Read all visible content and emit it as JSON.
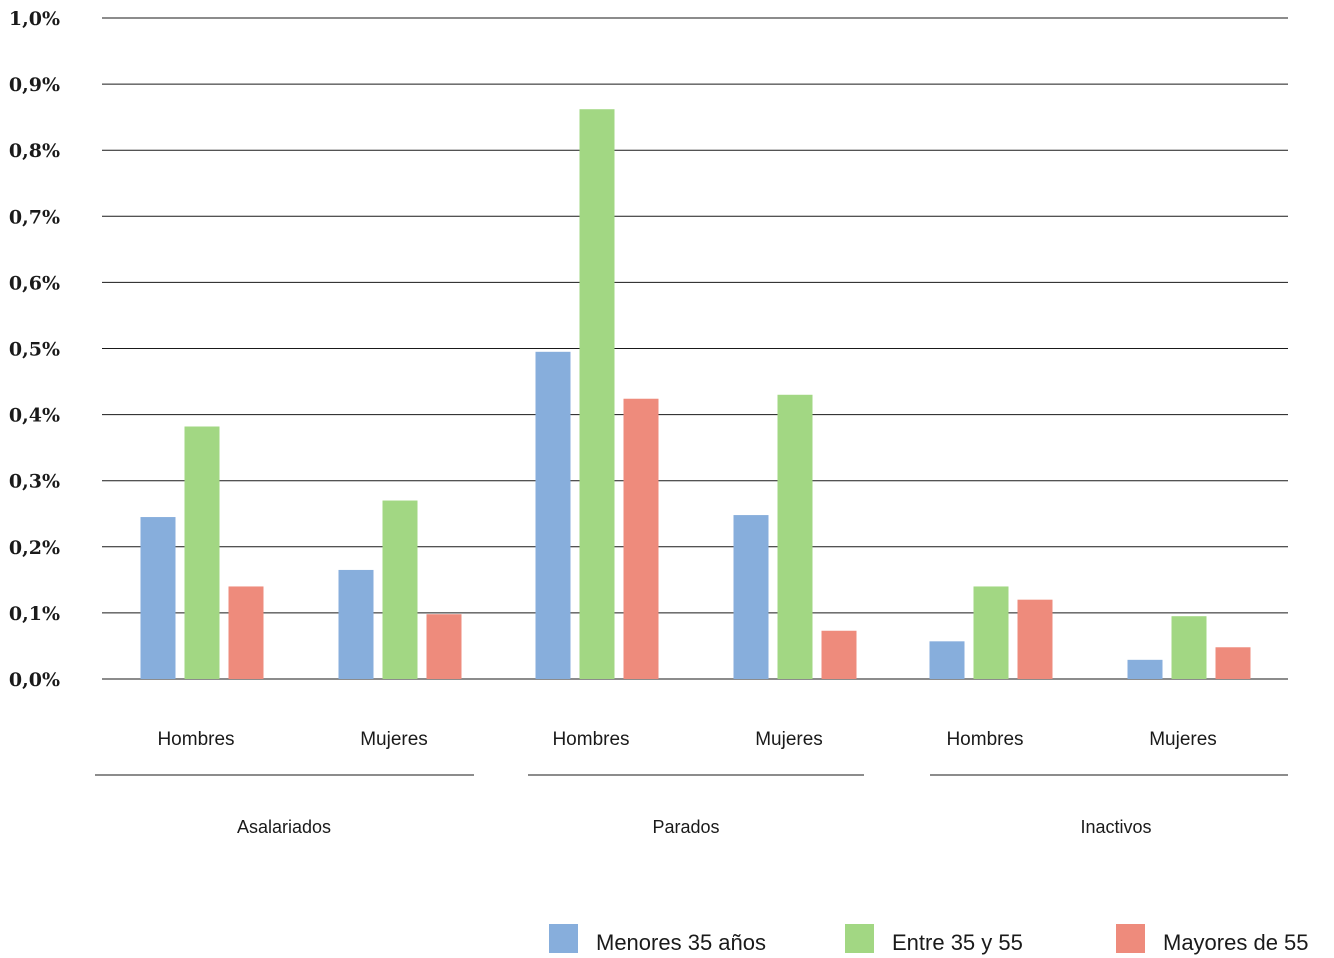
{
  "chart_data": {
    "type": "bar",
    "ylim": [
      0,
      1.0
    ],
    "yticks": [
      "0,0%",
      "0,1%",
      "0,2%",
      "0,3%",
      "0,4%",
      "0,5%",
      "0,6%",
      "0,7%",
      "0,8%",
      "0,9%",
      "1,0%"
    ],
    "grid": true,
    "legend_position": "bottom-right",
    "groups": [
      {
        "label": "Asalariados",
        "subcategories": [
          "Hombres",
          "Mujeres"
        ]
      },
      {
        "label": "Parados",
        "subcategories": [
          "Hombres",
          "Mujeres"
        ]
      },
      {
        "label": "Inactivos",
        "subcategories": [
          "Hombres",
          "Mujeres"
        ]
      }
    ],
    "categories": [
      "Hombres",
      "Mujeres",
      "Hombres",
      "Mujeres",
      "Hombres",
      "Mujeres"
    ],
    "series": [
      {
        "name": "Menores 35 años",
        "color": "#87aedc",
        "values": [
          0.245,
          0.165,
          0.495,
          0.248,
          0.057,
          0.029
        ]
      },
      {
        "name": "Entre 35 y 55",
        "color": "#a2d783",
        "values": [
          0.382,
          0.27,
          0.862,
          0.43,
          0.14,
          0.095
        ]
      },
      {
        "name": "Mayores de 55",
        "color": "#ee8b7c",
        "values": [
          0.14,
          0.098,
          0.424,
          0.073,
          0.12,
          0.048
        ]
      }
    ]
  }
}
